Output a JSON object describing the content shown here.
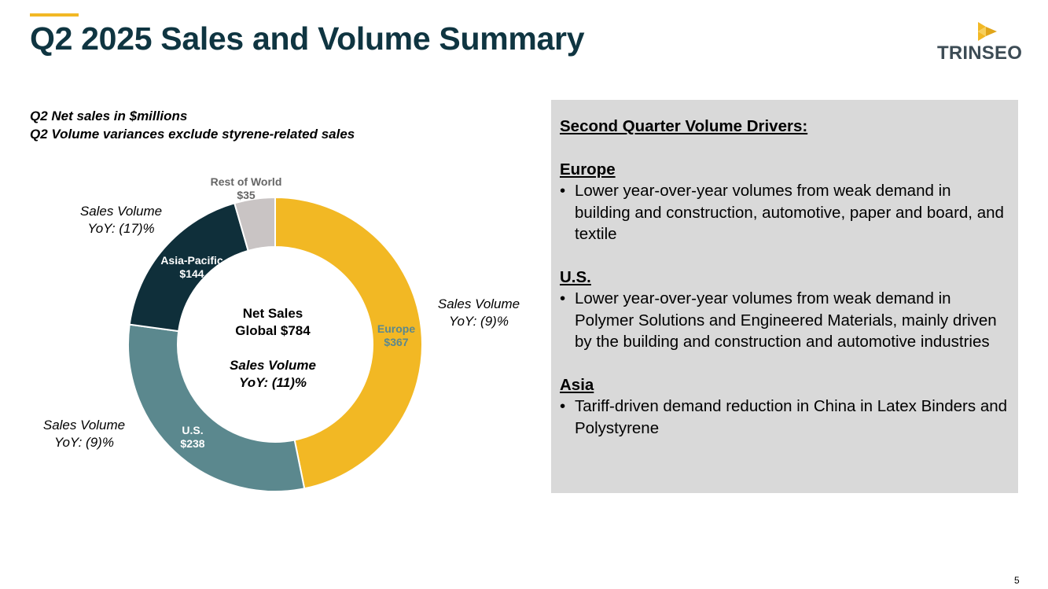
{
  "slide": {
    "title": "Q2 2025 Sales and Volume Summary",
    "logo_text": "TRINSEO",
    "accent_color": "#f2b824",
    "page_number": "5"
  },
  "subtitle": {
    "line1": "Q2 Net sales in $millions",
    "line2": "Q2 Volume variances exclude styrene-related sales"
  },
  "chart_data": {
    "type": "pie",
    "style": "donut",
    "series": [
      {
        "name": "Europe",
        "value": 367,
        "label": "$367",
        "color": "#f2b824",
        "label_color": "#5b888e"
      },
      {
        "name": "U.S.",
        "value": 238,
        "label": "$238",
        "color": "#5b888e",
        "label_color": "#ffffff"
      },
      {
        "name": "Asia-Pacific",
        "value": 144,
        "label": "$144",
        "color": "#0f2f3a",
        "label_color": "#ffffff"
      },
      {
        "name": "Rest of World",
        "value": 35,
        "label": "$35",
        "color": "#c9c4c4",
        "label_color": "#666666"
      }
    ],
    "center": {
      "line1": "Net Sales",
      "line2": "Global $784",
      "line3": "Sales Volume",
      "line4": "YoY: (11)%"
    }
  },
  "annotations": {
    "europe": {
      "line1": "Sales Volume",
      "line2": "YoY: (9)%"
    },
    "us": {
      "line1": "Sales Volume",
      "line2": "YoY: (9)%"
    },
    "asia_pacific": {
      "line1": "Sales Volume",
      "line2": "YoY: (17)%"
    }
  },
  "drivers": {
    "title": "Second Quarter Volume Drivers:",
    "sections": [
      {
        "heading": "Europe",
        "bullet": "Lower year-over-year volumes from weak demand in building and construction, automotive, paper and board, and textile"
      },
      {
        "heading": "U.S.",
        "bullet": "Lower year-over-year volumes from weak demand in Polymer Solutions and Engineered Materials, mainly driven by the building and construction and automotive industries"
      },
      {
        "heading": "Asia",
        "bullet": "Tariff-driven demand reduction in China in Latex Binders and Polystyrene"
      }
    ]
  }
}
